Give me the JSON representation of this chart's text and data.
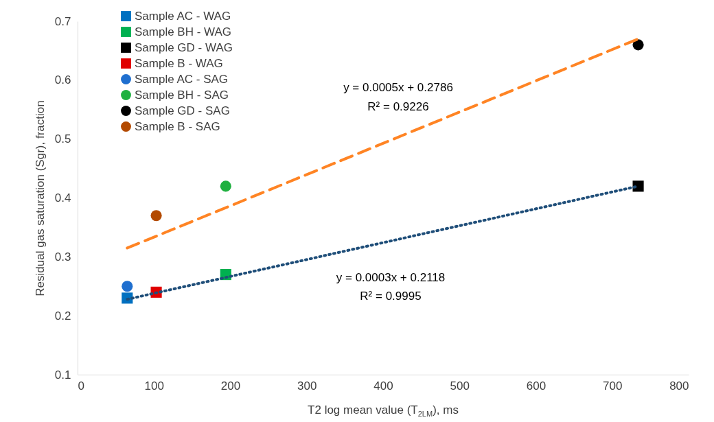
{
  "chart_data": {
    "type": "scatter",
    "xlabel": "T2 log mean value (T$_{2LM}$), ms",
    "ylabel": "Residual gas saturation (Sgr), fraction",
    "xlim": [
      0,
      800
    ],
    "xticks": [
      0,
      100,
      200,
      300,
      400,
      500,
      600,
      700,
      800
    ],
    "ylim": [
      0.1,
      0.7
    ],
    "yticks": [
      0.1,
      0.2,
      0.3,
      0.4,
      0.5,
      0.6,
      0.7
    ],
    "grid": false,
    "legend": "top left",
    "series": [
      {
        "name": "Sample AC - WAG",
        "color": "#0070c0",
        "marker": "square",
        "x": [
          65
        ],
        "values": [
          0.23
        ]
      },
      {
        "name": "Sample BH - WAG",
        "color": "#00b050",
        "marker": "square",
        "x": [
          194
        ],
        "values": [
          0.27
        ]
      },
      {
        "name": "Sample GD - WAG",
        "color": "#000000",
        "marker": "square",
        "x": [
          734
        ],
        "values": [
          0.42
        ]
      },
      {
        "name": "Sample B - WAG",
        "color": "#e00000",
        "marker": "square",
        "x": [
          103
        ],
        "values": [
          0.24
        ]
      },
      {
        "name": "Sample AC - SAG",
        "color": "#1f6fcf",
        "marker": "circle",
        "x": [
          65
        ],
        "values": [
          0.25
        ]
      },
      {
        "name": "Sample BH - SAG",
        "color": "#1fb040",
        "marker": "circle",
        "x": [
          194
        ],
        "values": [
          0.42
        ]
      },
      {
        "name": "Sample GD - SAG",
        "color": "#000000",
        "marker": "circle",
        "x": [
          734
        ],
        "values": [
          0.66
        ]
      },
      {
        "name": "Sample B - SAG",
        "color": "#b34a00",
        "marker": "circle",
        "x": [
          103
        ],
        "values": [
          0.37
        ]
      },
      {
        "type": "line",
        "color": "#ff8424",
        "line_style": "dashed",
        "x": [
          65,
          734
        ],
        "values": [
          0.315,
          0.67
        ]
      },
      {
        "type": "line",
        "color": "#1f4e79",
        "line_style": "dotted",
        "x": [
          65,
          734
        ],
        "values": [
          0.228,
          0.42
        ]
      }
    ],
    "annotations": [
      "y = 0.0005x + 0.2786",
      "R² = 0.9226",
      "y = 0.0003x + 0.2118",
      "R² = 0.9995"
    ]
  }
}
